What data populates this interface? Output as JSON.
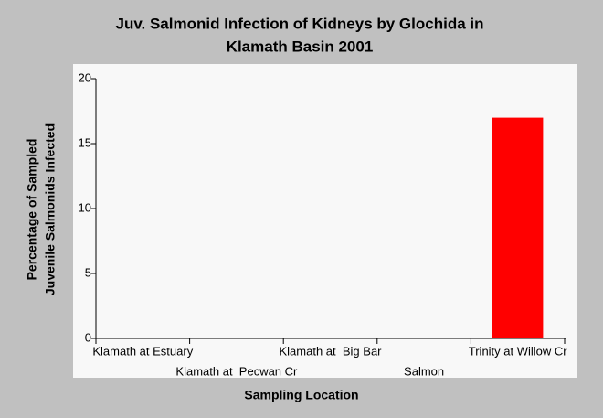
{
  "chart_data": {
    "type": "bar",
    "title": [
      "Juv. Salmonid Infection of Kidneys by Glochida in",
      "Klamath Basin 2001"
    ],
    "x_label": "Sampling Location",
    "y_label": [
      "Percentage of Sampled",
      "Juvenile Salmonids Infected"
    ],
    "categories": [
      "Klamath at Estuary",
      "Klamath at  Pecwan Cr",
      "Klamath at  Big Bar",
      "Salmon",
      "Trinity at Willow Cr"
    ],
    "values": [
      0,
      0,
      0,
      0,
      17
    ],
    "color": "#ff0000",
    "ylim": [
      0,
      20
    ],
    "yticks": [
      0,
      5,
      10,
      15,
      20
    ],
    "grid": false
  }
}
